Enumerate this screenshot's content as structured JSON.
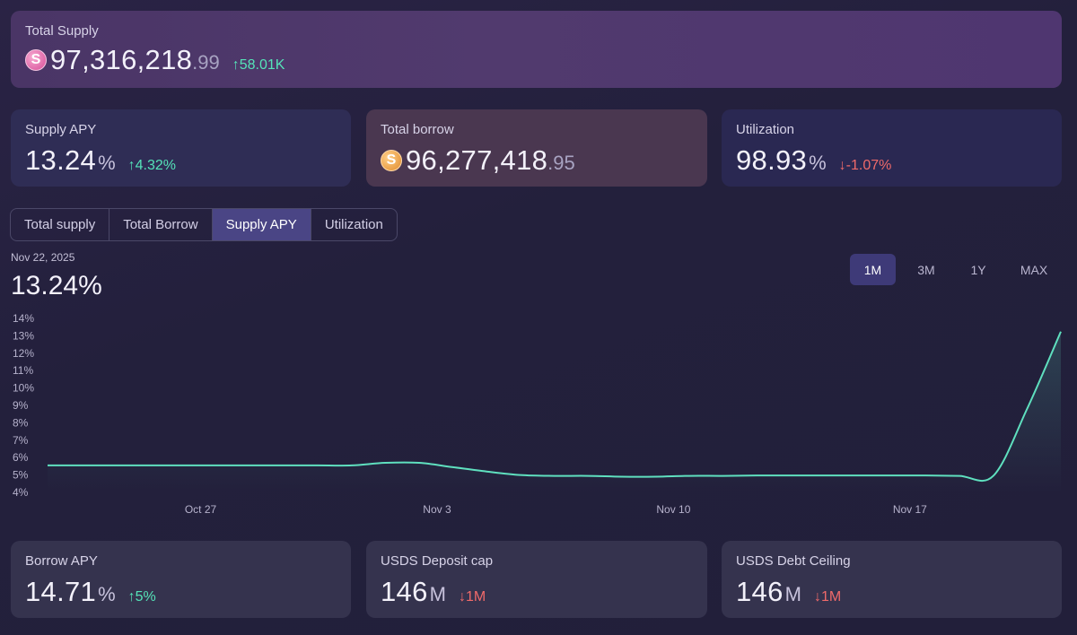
{
  "total_supply": {
    "label": "Total Supply",
    "coin_icon": "S",
    "value_main": "97,316,218",
    "value_decimals": ".99",
    "delta": "↑58.01K"
  },
  "supply_apy": {
    "label": "Supply APY",
    "value": "13.24",
    "unit": "%",
    "delta": "↑4.32%"
  },
  "total_borrow": {
    "label": "Total borrow",
    "coin_icon": "S",
    "value_main": "96,277,418",
    "value_decimals": ".95"
  },
  "utilization": {
    "label": "Utilization",
    "value": "98.93",
    "unit": "%",
    "delta": "↓-1.07%"
  },
  "tabs": [
    {
      "label": "Total supply"
    },
    {
      "label": "Total Borrow"
    },
    {
      "label": "Supply APY"
    },
    {
      "label": "Utilization"
    }
  ],
  "chart_header": {
    "date": "Nov 22, 2025",
    "value": "13.24%"
  },
  "ranges": [
    {
      "label": "1M"
    },
    {
      "label": "3M"
    },
    {
      "label": "1Y"
    },
    {
      "label": "MAX"
    }
  ],
  "borrow_apy": {
    "label": "Borrow APY",
    "value": "14.71",
    "unit": "%",
    "delta": "↑5%"
  },
  "deposit_cap": {
    "label": "USDS Deposit cap",
    "value": "146",
    "unit": "M",
    "delta": "↓1M"
  },
  "debt_ceiling": {
    "label": "USDS Debt Ceiling",
    "value": "146",
    "unit": "M",
    "delta": "↓1M"
  },
  "colors": {
    "line": "#5fe0bf",
    "up": "#55e3b8",
    "down": "#f06a6a"
  },
  "chart_data": {
    "type": "area",
    "title": "",
    "xlabel": "",
    "ylabel": "",
    "x_tick_labels": [
      "Oct 27",
      "Nov 3",
      "Nov 10",
      "Nov 17"
    ],
    "y_tick_labels": [
      "14%",
      "13%",
      "12%",
      "11%",
      "10%",
      "9%",
      "8%",
      "7%",
      "6%",
      "5%",
      "4%"
    ],
    "ylim": [
      4,
      14
    ],
    "grid": false,
    "series": [
      {
        "x": [
          "Oct 23",
          "Oct 24",
          "Oct 25",
          "Oct 26",
          "Oct 27",
          "Oct 28",
          "Oct 29",
          "Oct 30",
          "Oct 31",
          "Nov 1",
          "Nov 2",
          "Nov 3",
          "Nov 4",
          "Nov 5",
          "Nov 6",
          "Nov 7",
          "Nov 8",
          "Nov 9",
          "Nov 10",
          "Nov 11",
          "Nov 12",
          "Nov 13",
          "Nov 14",
          "Nov 15",
          "Nov 16",
          "Nov 17",
          "Nov 18",
          "Nov 19",
          "Nov 20",
          "Nov 21",
          "Nov 22"
        ],
        "values": [
          5.55,
          5.55,
          5.55,
          5.55,
          5.55,
          5.55,
          5.55,
          5.55,
          5.55,
          5.55,
          5.7,
          5.7,
          5.45,
          5.2,
          5.0,
          4.95,
          4.95,
          4.9,
          4.9,
          4.95,
          4.95,
          4.97,
          4.97,
          4.97,
          4.97,
          4.97,
          4.97,
          4.95,
          4.95,
          8.8,
          13.24
        ]
      }
    ]
  }
}
